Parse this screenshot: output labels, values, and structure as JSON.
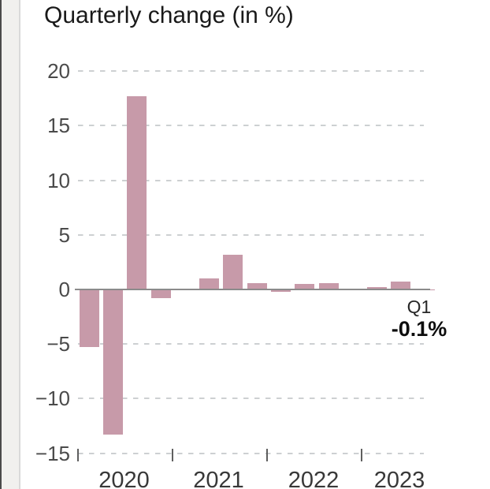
{
  "title": "Quarterly change (in %)",
  "chart_data": {
    "type": "bar",
    "title": "Quarterly change (in %)",
    "categories": [
      "2020 Q1",
      "2020 Q2",
      "2020 Q3",
      "2020 Q4",
      "2021 Q1",
      "2021 Q2",
      "2021 Q3",
      "2021 Q4",
      "2022 Q1",
      "2022 Q2",
      "2022 Q3",
      "2022 Q4",
      "2023 Q1",
      "2023 Q2",
      "2023 Q3"
    ],
    "values": [
      -5.3,
      -13.3,
      17.7,
      -0.8,
      0.0,
      1.0,
      3.2,
      0.6,
      -0.2,
      0.5,
      0.6,
      0.0,
      0.2,
      0.7,
      -0.1
    ],
    "xlabel": "",
    "ylabel": "",
    "ylim": [
      -15,
      20
    ],
    "y_ticks": [
      20,
      15,
      10,
      5,
      0,
      -5,
      -10,
      -15
    ],
    "y_tick_labels": [
      "20",
      "15",
      "10",
      "5",
      "0",
      "−5",
      "−10",
      "−15"
    ],
    "x_tick_years": [
      "2020",
      "2021",
      "2022",
      "2023"
    ],
    "grid": "horizontal-dashed",
    "legend_position": "none",
    "bar_color": "#c79aa9",
    "annotation": {
      "quarter_label": "Q1",
      "value_label": "-0.1%"
    }
  }
}
